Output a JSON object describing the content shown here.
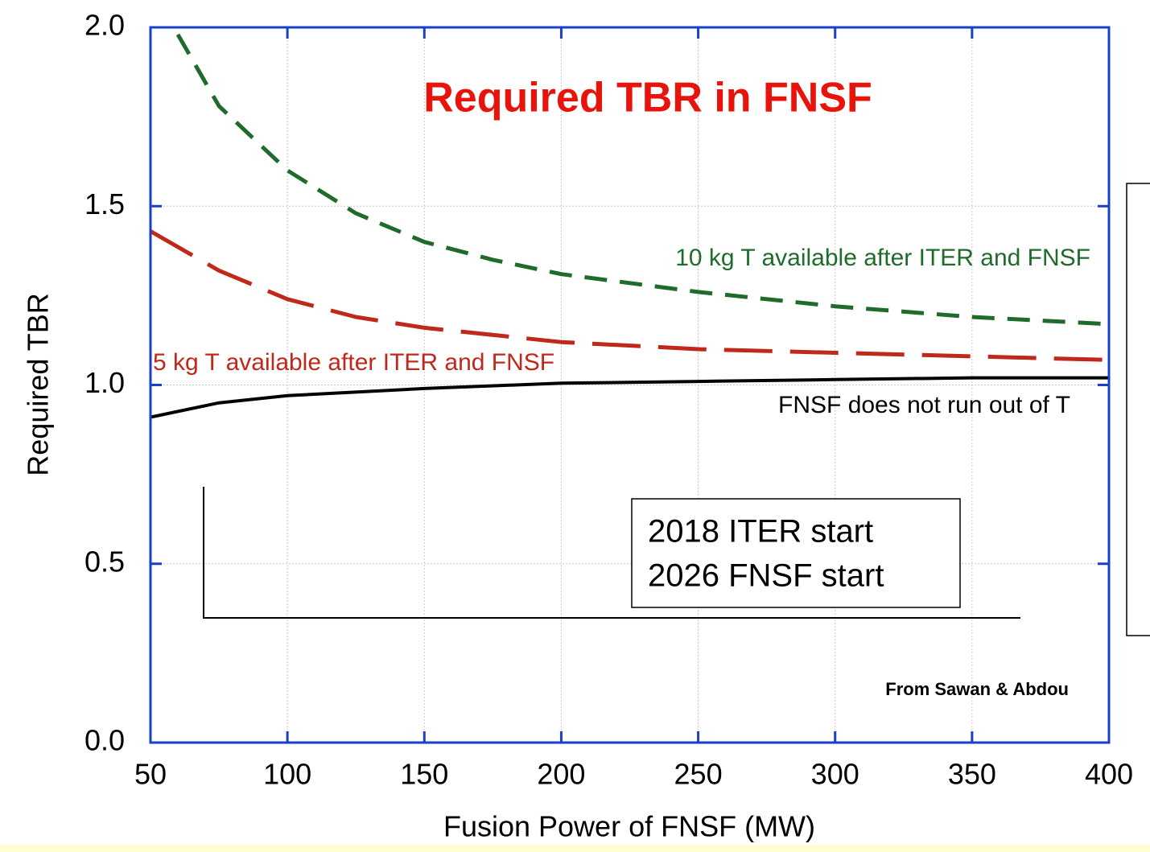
{
  "chart_data": {
    "type": "line",
    "title": "Required TBR in FNSF",
    "xlabel": "Fusion Power of FNSF (MW)",
    "ylabel": "Required TBR",
    "xlim": [
      50,
      400
    ],
    "ylim": [
      0,
      2
    ],
    "xticks": [
      50,
      100,
      150,
      200,
      250,
      300,
      350,
      400
    ],
    "yticks": [
      {
        "value": 0,
        "label": "0.0"
      },
      {
        "value": 0.5,
        "label": "0.5"
      },
      {
        "value": 1,
        "label": "1.0"
      },
      {
        "value": 1.5,
        "label": "1.5"
      },
      {
        "value": 2,
        "label": "2.0"
      }
    ],
    "grid": true,
    "series": [
      {
        "name": "10 kg T available after ITER and FNSF",
        "color": "#1e6b2a",
        "style": "dashed",
        "x": [
          60,
          75,
          100,
          125,
          150,
          175,
          200,
          250,
          300,
          350,
          400
        ],
        "values": [
          1.98,
          1.78,
          1.6,
          1.48,
          1.4,
          1.35,
          1.31,
          1.26,
          1.22,
          1.19,
          1.17
        ]
      },
      {
        "name": "5 kg T available after ITER and FNSF",
        "color": "#c0281c",
        "style": "longdash",
        "x": [
          50,
          75,
          100,
          125,
          150,
          200,
          250,
          300,
          350,
          400
        ],
        "values": [
          1.43,
          1.32,
          1.24,
          1.19,
          1.16,
          1.12,
          1.1,
          1.09,
          1.08,
          1.07
        ]
      },
      {
        "name": "FNSF does not run out of T",
        "color": "#000000",
        "style": "solid",
        "x": [
          50,
          75,
          100,
          150,
          200,
          250,
          300,
          350,
          400
        ],
        "values": [
          0.91,
          0.95,
          0.97,
          0.99,
          1.005,
          1.01,
          1.015,
          1.02,
          1.02
        ]
      }
    ],
    "annotations": [
      "2018 ITER start",
      "2026 FNSF start",
      "From Sawan & Abdou"
    ]
  }
}
